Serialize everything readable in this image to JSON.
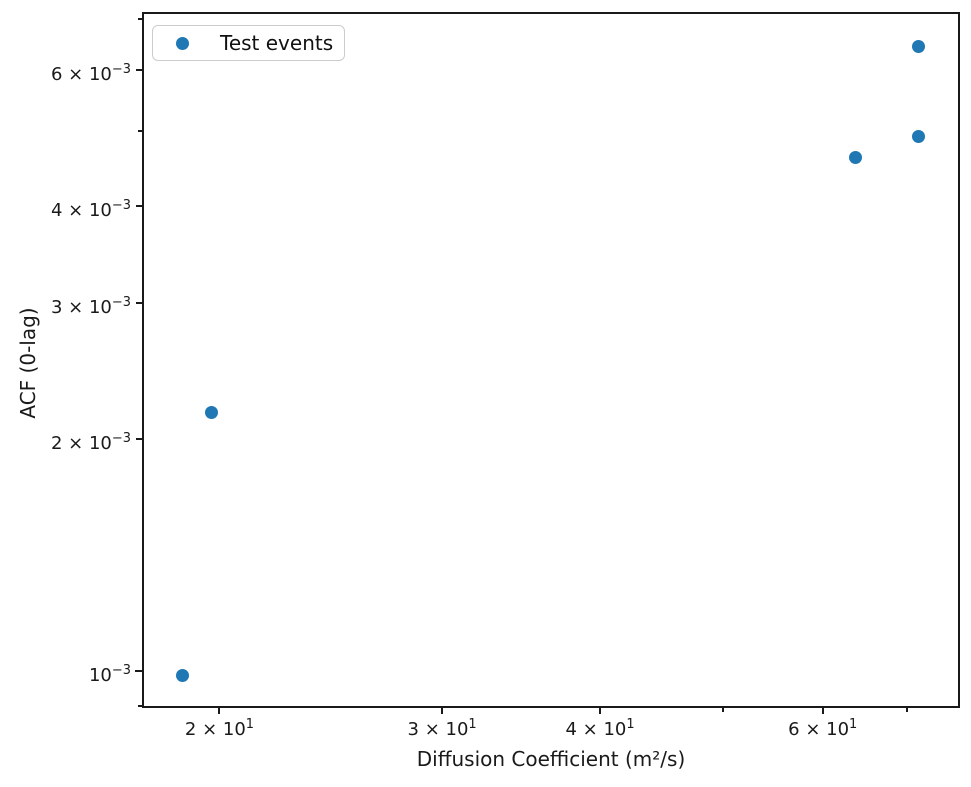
{
  "figure": {
    "background": "#ffffff",
    "axes_color": "#1a1a1a"
  },
  "legend": {
    "label": "Test events",
    "marker_color": "#1f77b4"
  },
  "chart_data": {
    "type": "scatter",
    "title": "",
    "xlabel": "Diffusion Coefficient (m²/s)",
    "ylabel": "ACF (0-lag)",
    "xscale": "log",
    "yscale": "log",
    "xlim": [
      17.4,
      76.9
    ],
    "ylim": [
      0.000898,
      0.00712
    ],
    "grid": false,
    "legend_position": "upper left",
    "series": [
      {
        "name": "Test events",
        "color": "#1f77b4",
        "points": [
          {
            "x": 18.7,
            "y": 0.000987
          },
          {
            "x": 19.7,
            "y": 0.00216
          },
          {
            "x": 63.7,
            "y": 0.00463
          },
          {
            "x": 71.4,
            "y": 0.00492
          },
          {
            "x": 71.4,
            "y": 0.00645
          }
        ]
      }
    ],
    "x_ticks": [
      {
        "value": 20,
        "base": "2 × 10",
        "exp": "1",
        "labeled": true
      },
      {
        "value": 30,
        "base": "3 × 10",
        "exp": "1",
        "labeled": true
      },
      {
        "value": 40,
        "base": "4 × 10",
        "exp": "1",
        "labeled": true
      },
      {
        "value": 50,
        "labeled": false
      },
      {
        "value": 60,
        "base": "6 × 10",
        "exp": "1",
        "labeled": true
      },
      {
        "value": 70,
        "labeled": false
      }
    ],
    "y_ticks": [
      {
        "value": 0.0009,
        "labeled": false
      },
      {
        "value": 0.001,
        "base": "10",
        "exp": "−3",
        "labeled": true,
        "major": true
      },
      {
        "value": 0.002,
        "base": "2 × 10",
        "exp": "−3",
        "labeled": true
      },
      {
        "value": 0.003,
        "base": "3 × 10",
        "exp": "−3",
        "labeled": true
      },
      {
        "value": 0.004,
        "base": "4 × 10",
        "exp": "−3",
        "labeled": true
      },
      {
        "value": 0.005,
        "labeled": false
      },
      {
        "value": 0.006,
        "base": "6 × 10",
        "exp": "−3",
        "labeled": true
      },
      {
        "value": 0.007,
        "labeled": false
      }
    ]
  }
}
